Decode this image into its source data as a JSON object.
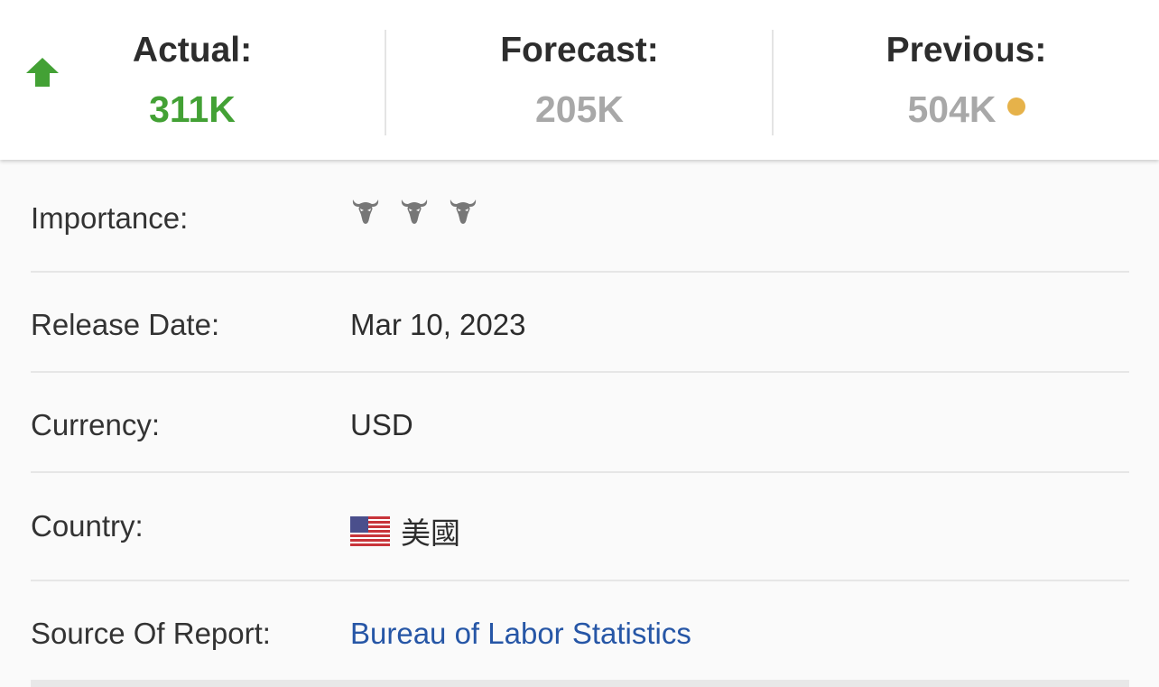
{
  "summary": {
    "trend_icon": "arrow-up-icon",
    "actual_label": "Actual:",
    "actual_value": "311K",
    "forecast_label": "Forecast:",
    "forecast_value": "205K",
    "previous_label": "Previous:",
    "previous_value": "504K",
    "colors": {
      "actual": "#43a135",
      "muted": "#a8a8a8",
      "previous_dot": "#e6b24a",
      "link": "#2656a6"
    }
  },
  "details": {
    "importance": {
      "label": "Importance:",
      "level": 3,
      "max": 3,
      "icon": "bull-icon"
    },
    "release_date": {
      "label": "Release Date:",
      "value": "Mar 10, 2023"
    },
    "currency": {
      "label": "Currency:",
      "value": "USD"
    },
    "country": {
      "label": "Country:",
      "value": "美國",
      "flag": "us-flag-icon"
    },
    "source": {
      "label": "Source Of Report:",
      "value": "Bureau of Labor Statistics"
    }
  }
}
